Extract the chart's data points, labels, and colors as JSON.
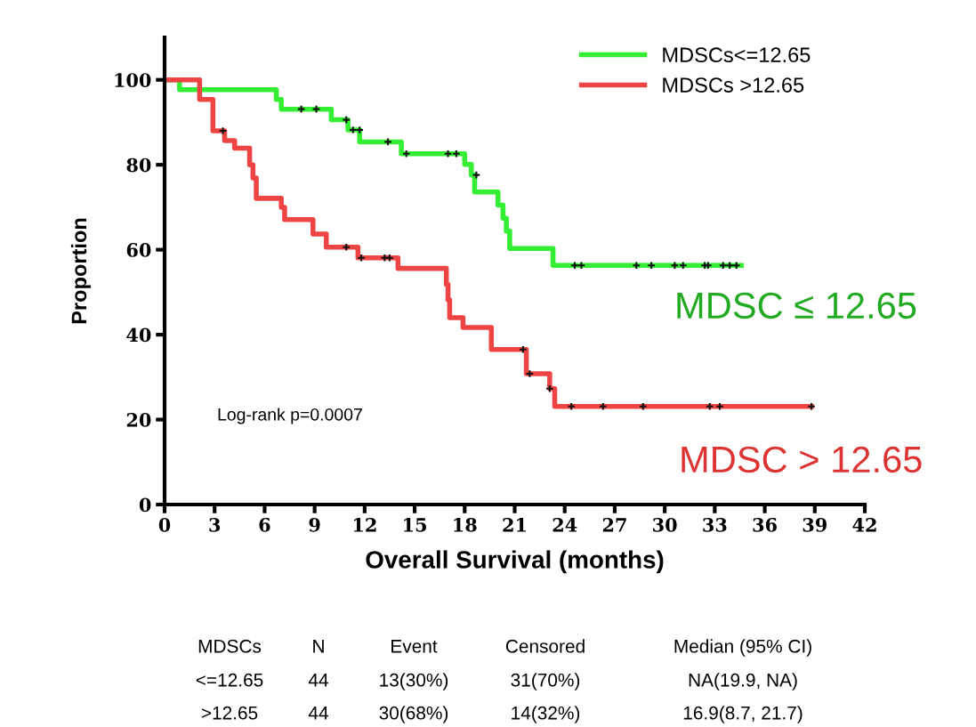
{
  "chart_data": {
    "type": "step",
    "xlabel": "Overall Survival (months)",
    "ylabel": "Proportion",
    "xlim": [
      0,
      42
    ],
    "xticks": [
      0,
      3,
      6,
      9,
      12,
      15,
      18,
      21,
      24,
      27,
      30,
      33,
      36,
      39,
      42
    ],
    "ylim": [
      0,
      110
    ],
    "yticks": [
      0,
      20,
      40,
      60,
      80,
      100
    ],
    "grid": false,
    "legend": "top right",
    "series": [
      {
        "name": "MDSCs<=12.65",
        "color": "#33ee33",
        "x": [
          0,
          0.9,
          6.7,
          7.0,
          10.0,
          11.0,
          11.7,
          14.2,
          18.0,
          18.4,
          18.6,
          20.0,
          20.3,
          20.5,
          20.7,
          23.3,
          34.6
        ],
        "values": [
          100,
          97.7,
          95.4,
          93.1,
          90.6,
          88.2,
          85.4,
          82.6,
          80.1,
          77.6,
          73.6,
          70.5,
          67.4,
          64.4,
          60.3,
          56.3,
          56.3
        ]
      },
      {
        "name": "MDSCs >12.65",
        "color": "#ee4444",
        "x": [
          0,
          2.1,
          2.9,
          3.6,
          4.2,
          5.1,
          5.3,
          5.5,
          7.0,
          7.2,
          8.9,
          9.7,
          11.6,
          14.0,
          16.9,
          17.0,
          17.1,
          17.9,
          19.6,
          21.7,
          23.1,
          23.4,
          38.8
        ],
        "values": [
          100,
          95.4,
          88.0,
          85.7,
          83.9,
          80.0,
          76.9,
          72.1,
          70.0,
          67.1,
          63.7,
          60.6,
          58.1,
          55.6,
          51.8,
          48.2,
          44.0,
          41.7,
          36.5,
          30.8,
          27.3,
          23.1,
          23.1
        ]
      },
      {
        "type": "scatter",
        "color": "#111111",
        "marker": "cross",
        "x": [
          8.2,
          9.1,
          10.9,
          11.3,
          11.7,
          13.4,
          14.5,
          17.0,
          17.5,
          18.7,
          24.6,
          25.0,
          28.3,
          29.2,
          30.6,
          31.1,
          32.4,
          32.6,
          33.5,
          33.9,
          34.3
        ],
        "values": [
          93.1,
          93.1,
          90.6,
          88.2,
          88.2,
          85.4,
          82.6,
          82.6,
          82.6,
          77.6,
          56.3,
          56.3,
          56.3,
          56.3,
          56.3,
          56.3,
          56.3,
          56.3,
          56.3,
          56.3,
          56.3
        ]
      },
      {
        "type": "scatter",
        "color": "#111111",
        "marker": "cross",
        "x": [
          3.5,
          10.9,
          11.8,
          13.2,
          13.5,
          21.5,
          21.9,
          23.1,
          24.4,
          26.3,
          28.7,
          32.7,
          33.3,
          38.8
        ],
        "values": [
          88.0,
          60.6,
          58.1,
          58.1,
          58.1,
          36.5,
          30.8,
          27.3,
          23.1,
          23.1,
          23.1,
          23.1,
          23.1,
          23.1
        ]
      }
    ],
    "annotations": [
      "Log-rank p=0.0007",
      "MDSC ≤ 12.65",
      "MDSC > 12.65",
      "MDSCs",
      "N",
      "Event",
      "Censored",
      "Median (95% CI)",
      "<=12.65",
      "44",
      "13(30%)",
      "31(70%)",
      "NA(19.9, NA)",
      ">12.65",
      "44",
      "30(68%)",
      "14(32%)",
      "16.9(8.7, 21.7)"
    ]
  }
}
